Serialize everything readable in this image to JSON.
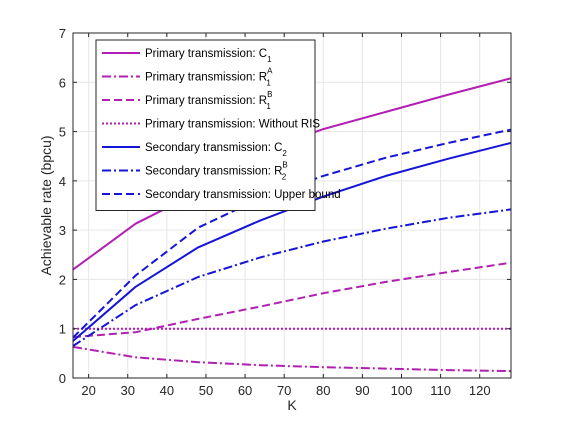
{
  "chart_data": {
    "type": "line",
    "xlabel": "K",
    "ylabel": "Achievable rate (bpcu)",
    "xlim": [
      16,
      128
    ],
    "ylim": [
      0,
      7
    ],
    "xticks": [
      20,
      30,
      40,
      50,
      60,
      70,
      80,
      90,
      100,
      110,
      120
    ],
    "yticks": [
      0,
      1,
      2,
      3,
      4,
      5,
      6,
      7
    ],
    "grid": true,
    "legend_position": "top-left",
    "x": [
      16,
      32,
      48,
      64,
      80,
      96,
      112,
      128
    ],
    "series": [
      {
        "name": "Primary transmission: C",
        "name_sub": "1",
        "name_sup": "",
        "color": "#b21fb2",
        "style": "solid",
        "values": [
          2.2,
          3.13,
          3.77,
          4.6,
          5.05,
          5.4,
          5.75,
          6.08
        ]
      },
      {
        "name": "Primary transmission: R",
        "name_sub": "1",
        "name_sup": "A",
        "color": "#b21fb2",
        "style": "dashdot",
        "values": [
          0.63,
          0.42,
          0.32,
          0.26,
          0.22,
          0.19,
          0.16,
          0.14
        ]
      },
      {
        "name": "Primary transmission: R",
        "name_sub": "1",
        "name_sup": "B",
        "color": "#b21fb2",
        "style": "dashed",
        "values": [
          0.83,
          0.93,
          1.2,
          1.45,
          1.72,
          1.95,
          2.15,
          2.34
        ]
      },
      {
        "name": "Primary transmission: Without RIS",
        "name_sub": "",
        "name_sup": "",
        "color": "#b21fb2",
        "style": "dotted",
        "values": [
          1.0,
          1.0,
          1.0,
          1.0,
          1.0,
          1.0,
          1.0,
          1.0
        ]
      },
      {
        "name": "Secondary transmission: C",
        "name_sub": "2",
        "name_sup": "",
        "color": "#1515d8",
        "style": "solid",
        "values": [
          0.75,
          1.85,
          2.65,
          3.2,
          3.68,
          4.1,
          4.45,
          4.77
        ]
      },
      {
        "name": "Secondary transmission: R",
        "name_sub": "2",
        "name_sup": "B",
        "color": "#1515d8",
        "style": "dashdot",
        "values": [
          0.65,
          1.48,
          2.05,
          2.45,
          2.77,
          3.03,
          3.25,
          3.42
        ]
      },
      {
        "name": "Secondary transmission: Upper bound",
        "name_sub": "",
        "name_sup": "",
        "color": "#1515d8",
        "style": "dashed",
        "values": [
          0.82,
          2.08,
          3.05,
          3.65,
          4.1,
          4.47,
          4.77,
          5.04
        ]
      }
    ]
  }
}
